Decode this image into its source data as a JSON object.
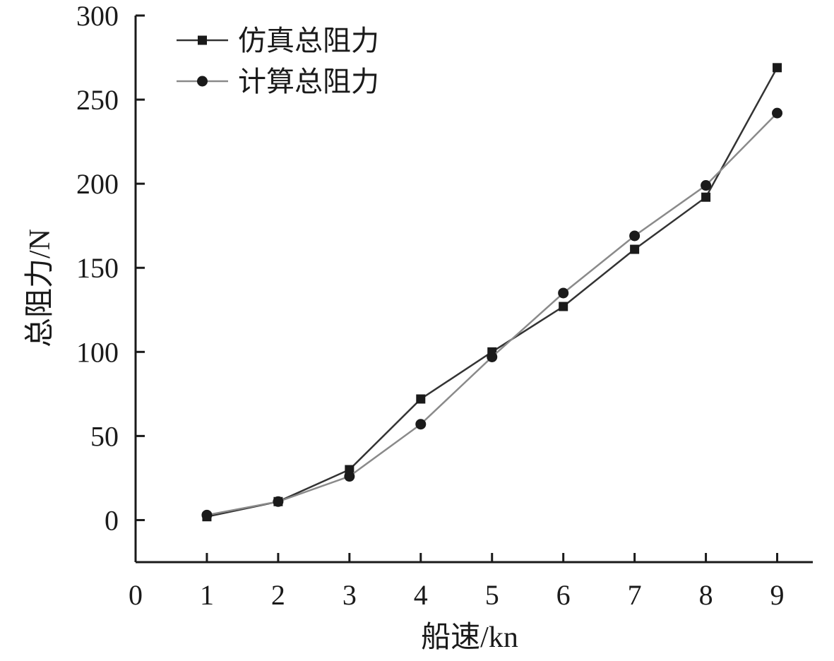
{
  "chart_data": {
    "type": "line",
    "xlabel": "船速/kn",
    "ylabel": "总阻力/N",
    "xlim": [
      0,
      9.5
    ],
    "ylim": [
      -25,
      300
    ],
    "x_ticks": [
      0,
      1,
      2,
      3,
      4,
      5,
      6,
      7,
      8,
      9
    ],
    "y_ticks": [
      0,
      50,
      100,
      150,
      200,
      250,
      300
    ],
    "legend_position": "top-left",
    "grid": false,
    "x": [
      1,
      2,
      3,
      4,
      5,
      6,
      7,
      8,
      9
    ],
    "series": [
      {
        "name": "仿真总阻力",
        "marker": "square",
        "color": "#333333",
        "values": [
          2,
          11,
          30,
          72,
          100,
          127,
          161,
          192,
          269
        ]
      },
      {
        "name": "计算总阻力",
        "marker": "circle",
        "color": "#8a8a8a",
        "values": [
          3,
          11,
          26,
          57,
          97,
          135,
          169,
          199,
          242
        ]
      }
    ]
  }
}
